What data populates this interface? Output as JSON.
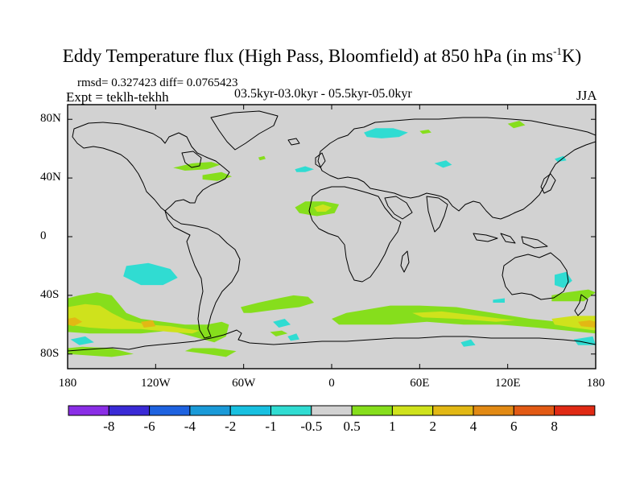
{
  "figure": {
    "title_main": "Eddy Temperature flux (High Pass, Bloomfield) at 850 hPa (in ms",
    "title_sup": "-1",
    "title_end": "K)",
    "stats": "rmsd= 0.327423 diff= 0.0765423",
    "expt": "Expt = teklh-tekhh",
    "period": "03.5kyr-03.0kyr - 05.5kyr-05.0kyr",
    "season": "JJA"
  },
  "colors": {
    "background_field": "#d2d2d2",
    "coast": "#000000"
  },
  "chart_data": {
    "type": "heatmap",
    "projection": "cylindrical-equidistant",
    "xlim": [
      -180,
      180
    ],
    "ylim": [
      -90,
      90
    ],
    "lat_ticks": [
      {
        "value": 80,
        "label": "80N"
      },
      {
        "value": 40,
        "label": "40N"
      },
      {
        "value": 0,
        "label": "0"
      },
      {
        "value": -40,
        "label": "40S"
      },
      {
        "value": -80,
        "label": "80S"
      }
    ],
    "lon_ticks": [
      {
        "value": -180,
        "label": "180"
      },
      {
        "value": -120,
        "label": "120W"
      },
      {
        "value": -60,
        "label": "60W"
      },
      {
        "value": 0,
        "label": "0"
      },
      {
        "value": 60,
        "label": "60E"
      },
      {
        "value": 120,
        "label": "120E"
      },
      {
        "value": 180,
        "label": "180"
      }
    ],
    "colorbar": {
      "colors": [
        "#8a2ee6",
        "#3a2ad6",
        "#1e62e0",
        "#1a9ad8",
        "#18c0e0",
        "#30dcd2",
        "#d2d2d2",
        "#86de1c",
        "#cfe21c",
        "#e2b814",
        "#e28a14",
        "#e25a14",
        "#e02a14"
      ],
      "labels": [
        "-8",
        "-6",
        "-4",
        "-2",
        "-1",
        "-0.5",
        "0.5",
        "1",
        "2",
        "4",
        "6",
        "8"
      ]
    },
    "regions": [
      {
        "name": "so-pacific-green",
        "level": 1,
        "pts": [
          [
            -180,
            -42
          ],
          [
            -172,
            -40
          ],
          [
            -160,
            -38
          ],
          [
            -150,
            -40
          ],
          [
            -145,
            -46
          ],
          [
            -140,
            -52
          ],
          [
            -130,
            -56
          ],
          [
            -115,
            -58
          ],
          [
            -100,
            -60
          ],
          [
            -85,
            -60
          ],
          [
            -75,
            -58
          ],
          [
            -70,
            -60
          ],
          [
            -72,
            -68
          ],
          [
            -80,
            -72
          ],
          [
            -95,
            -68
          ],
          [
            -110,
            -64
          ],
          [
            -130,
            -66
          ],
          [
            -150,
            -66
          ],
          [
            -165,
            -66
          ],
          [
            -180,
            -65
          ]
        ]
      },
      {
        "name": "so-pacific-yellow",
        "level": 2,
        "pts": [
          [
            -180,
            -48
          ],
          [
            -168,
            -46
          ],
          [
            -158,
            -47
          ],
          [
            -150,
            -52
          ],
          [
            -140,
            -57
          ],
          [
            -125,
            -60
          ],
          [
            -110,
            -61
          ],
          [
            -98,
            -63
          ],
          [
            -90,
            -64
          ],
          [
            -95,
            -66
          ],
          [
            -110,
            -65
          ],
          [
            -130,
            -63
          ],
          [
            -150,
            -63
          ],
          [
            -165,
            -62
          ],
          [
            -180,
            -60
          ]
        ]
      },
      {
        "name": "so-pacific-orange-w",
        "level": 3,
        "pts": [
          [
            -180,
            -56
          ],
          [
            -175,
            -55
          ],
          [
            -170,
            -58
          ],
          [
            -176,
            -61
          ],
          [
            -180,
            -60
          ]
        ]
      },
      {
        "name": "so-pacific-orange-c",
        "level": 3,
        "pts": [
          [
            -130,
            -58
          ],
          [
            -122,
            -57
          ],
          [
            -120,
            -61
          ],
          [
            -128,
            -62
          ]
        ]
      },
      {
        "name": "so-atlantic-green",
        "level": 1,
        "pts": [
          [
            -62,
            -48
          ],
          [
            -50,
            -45
          ],
          [
            -36,
            -42
          ],
          [
            -26,
            -40
          ],
          [
            -16,
            -41
          ],
          [
            -12,
            -45
          ],
          [
            -22,
            -48
          ],
          [
            -40,
            -50
          ],
          [
            -55,
            -52
          ],
          [
            -60,
            -52
          ]
        ]
      },
      {
        "name": "so-indian-green",
        "level": 1,
        "pts": [
          [
            0,
            -56
          ],
          [
            10,
            -52
          ],
          [
            22,
            -50
          ],
          [
            40,
            -47
          ],
          [
            60,
            -47
          ],
          [
            85,
            -48
          ],
          [
            110,
            -52
          ],
          [
            135,
            -56
          ],
          [
            155,
            -58
          ],
          [
            165,
            -58
          ],
          [
            180,
            -56
          ],
          [
            180,
            -66
          ],
          [
            160,
            -64
          ],
          [
            140,
            -62
          ],
          [
            115,
            -60
          ],
          [
            90,
            -60
          ],
          [
            65,
            -58
          ],
          [
            40,
            -60
          ],
          [
            20,
            -60
          ],
          [
            5,
            -60
          ]
        ]
      },
      {
        "name": "so-indian-yellow",
        "level": 2,
        "pts": [
          [
            55,
            -52
          ],
          [
            75,
            -51
          ],
          [
            100,
            -54
          ],
          [
            125,
            -57
          ],
          [
            112,
            -58
          ],
          [
            85,
            -56
          ],
          [
            62,
            -55
          ]
        ]
      },
      {
        "name": "so-pacific-east-yellow",
        "level": 2,
        "pts": [
          [
            150,
            -56
          ],
          [
            165,
            -54
          ],
          [
            180,
            -54
          ],
          [
            180,
            -64
          ],
          [
            165,
            -62
          ],
          [
            152,
            -60
          ]
        ]
      },
      {
        "name": "so-pacific-east-orange",
        "level": 3,
        "pts": [
          [
            168,
            -58
          ],
          [
            176,
            -57
          ],
          [
            180,
            -58
          ],
          [
            180,
            -62
          ],
          [
            170,
            -61
          ]
        ]
      },
      {
        "name": "south-australia-green",
        "level": 1,
        "pts": [
          [
            150,
            -40
          ],
          [
            160,
            -38
          ],
          [
            175,
            -36
          ],
          [
            180,
            -38
          ],
          [
            172,
            -44
          ],
          [
            160,
            -44
          ],
          [
            150,
            -44
          ]
        ]
      },
      {
        "name": "sahara-green",
        "level": 1,
        "pts": [
          [
            -25,
            20
          ],
          [
            -18,
            24
          ],
          [
            -5,
            24
          ],
          [
            5,
            22
          ],
          [
            2,
            16
          ],
          [
            -10,
            14
          ],
          [
            -22,
            16
          ]
        ]
      },
      {
        "name": "sahara-yellow",
        "level": 2,
        "pts": [
          [
            -12,
            20
          ],
          [
            -6,
            22
          ],
          [
            0,
            20
          ],
          [
            -4,
            17
          ],
          [
            -10,
            17
          ]
        ]
      },
      {
        "name": "hudson-green",
        "level": 1,
        "pts": [
          [
            -108,
            47
          ],
          [
            -95,
            50
          ],
          [
            -82,
            51
          ],
          [
            -76,
            49
          ],
          [
            -85,
            46
          ],
          [
            -100,
            45
          ]
        ]
      },
      {
        "name": "east-us-green",
        "level": 1,
        "pts": [
          [
            -88,
            42
          ],
          [
            -75,
            44
          ],
          [
            -68,
            41
          ],
          [
            -78,
            38
          ],
          [
            -88,
            39
          ]
        ]
      },
      {
        "name": "newfoundland-green",
        "level": 1,
        "pts": [
          [
            -50,
            54
          ],
          [
            -46,
            55
          ],
          [
            -45,
            53
          ],
          [
            -49,
            52
          ]
        ]
      },
      {
        "name": "ross-sea-green",
        "level": 1,
        "pts": [
          [
            -180,
            -80
          ],
          [
            -150,
            -82
          ],
          [
            -135,
            -80
          ],
          [
            -150,
            -76
          ],
          [
            -170,
            -75
          ],
          [
            -180,
            -76
          ]
        ]
      },
      {
        "name": "antarctic-pen-green",
        "level": 1,
        "pts": [
          [
            -100,
            -78
          ],
          [
            -85,
            -80
          ],
          [
            -72,
            -82
          ],
          [
            -65,
            -78
          ],
          [
            -80,
            -76
          ],
          [
            -95,
            -76
          ]
        ]
      },
      {
        "name": "weddell-green",
        "level": 1,
        "pts": [
          [
            -42,
            -65
          ],
          [
            -34,
            -64
          ],
          [
            -30,
            -66
          ],
          [
            -38,
            -68
          ]
        ]
      },
      {
        "name": "arctic-siberia-green",
        "level": 1,
        "pts": [
          [
            120,
            77
          ],
          [
            128,
            79
          ],
          [
            132,
            76
          ],
          [
            124,
            74
          ]
        ]
      },
      {
        "name": "kara-sea-green",
        "level": 1,
        "pts": [
          [
            60,
            72
          ],
          [
            66,
            73
          ],
          [
            68,
            71
          ],
          [
            62,
            70
          ]
        ]
      },
      {
        "name": "e-pacific-cyan",
        "level": -1,
        "pts": [
          [
            -140,
            -20
          ],
          [
            -125,
            -18
          ],
          [
            -110,
            -22
          ],
          [
            -105,
            -28
          ],
          [
            -115,
            -33
          ],
          [
            -130,
            -33
          ],
          [
            -142,
            -27
          ]
        ]
      },
      {
        "name": "n-atlantic-cyan",
        "level": -1,
        "pts": [
          [
            -25,
            46
          ],
          [
            -18,
            48
          ],
          [
            -12,
            46
          ],
          [
            -18,
            44
          ],
          [
            -24,
            44
          ]
        ]
      },
      {
        "name": "arctic-cyan",
        "level": -1,
        "pts": [
          [
            22,
            71
          ],
          [
            30,
            74
          ],
          [
            42,
            74
          ],
          [
            52,
            71
          ],
          [
            46,
            68
          ],
          [
            34,
            67
          ],
          [
            24,
            68
          ]
        ]
      },
      {
        "name": "ne-asia-cyan",
        "level": -1,
        "pts": [
          [
            70,
            50
          ],
          [
            78,
            52
          ],
          [
            82,
            49
          ],
          [
            76,
            47
          ]
        ]
      },
      {
        "name": "kamchatka-cyan",
        "level": -1,
        "pts": [
          [
            152,
            53
          ],
          [
            158,
            55
          ],
          [
            160,
            52
          ],
          [
            154,
            51
          ]
        ]
      },
      {
        "name": "tasman-cyan",
        "level": -1,
        "pts": [
          [
            152,
            -26
          ],
          [
            160,
            -24
          ],
          [
            164,
            -30
          ],
          [
            158,
            -35
          ],
          [
            152,
            -33
          ]
        ]
      },
      {
        "name": "drake-cyan",
        "level": -1,
        "pts": [
          [
            -40,
            -58
          ],
          [
            -32,
            -56
          ],
          [
            -28,
            -60
          ],
          [
            -36,
            -62
          ]
        ]
      },
      {
        "name": "sw-pacific-cyan",
        "level": -1,
        "pts": [
          [
            -178,
            -70
          ],
          [
            -168,
            -68
          ],
          [
            -162,
            -72
          ],
          [
            -172,
            -74
          ]
        ]
      },
      {
        "name": "antarctic-cyan-e",
        "level": -1,
        "pts": [
          [
            165,
            -70
          ],
          [
            178,
            -68
          ],
          [
            180,
            -74
          ],
          [
            168,
            -74
          ]
        ]
      },
      {
        "name": "indian-cyan",
        "level": -1,
        "pts": [
          [
            110,
            -43
          ],
          [
            118,
            -42
          ],
          [
            118,
            -45
          ],
          [
            110,
            -45
          ]
        ]
      },
      {
        "name": "s-indian-cyan",
        "level": -1,
        "pts": [
          [
            88,
            -72
          ],
          [
            95,
            -70
          ],
          [
            98,
            -74
          ],
          [
            90,
            -75
          ]
        ]
      },
      {
        "name": "ross-cyan",
        "level": -1,
        "pts": [
          [
            -30,
            -68
          ],
          [
            -24,
            -66
          ],
          [
            -22,
            -70
          ],
          [
            -28,
            -71
          ]
        ]
      }
    ]
  }
}
